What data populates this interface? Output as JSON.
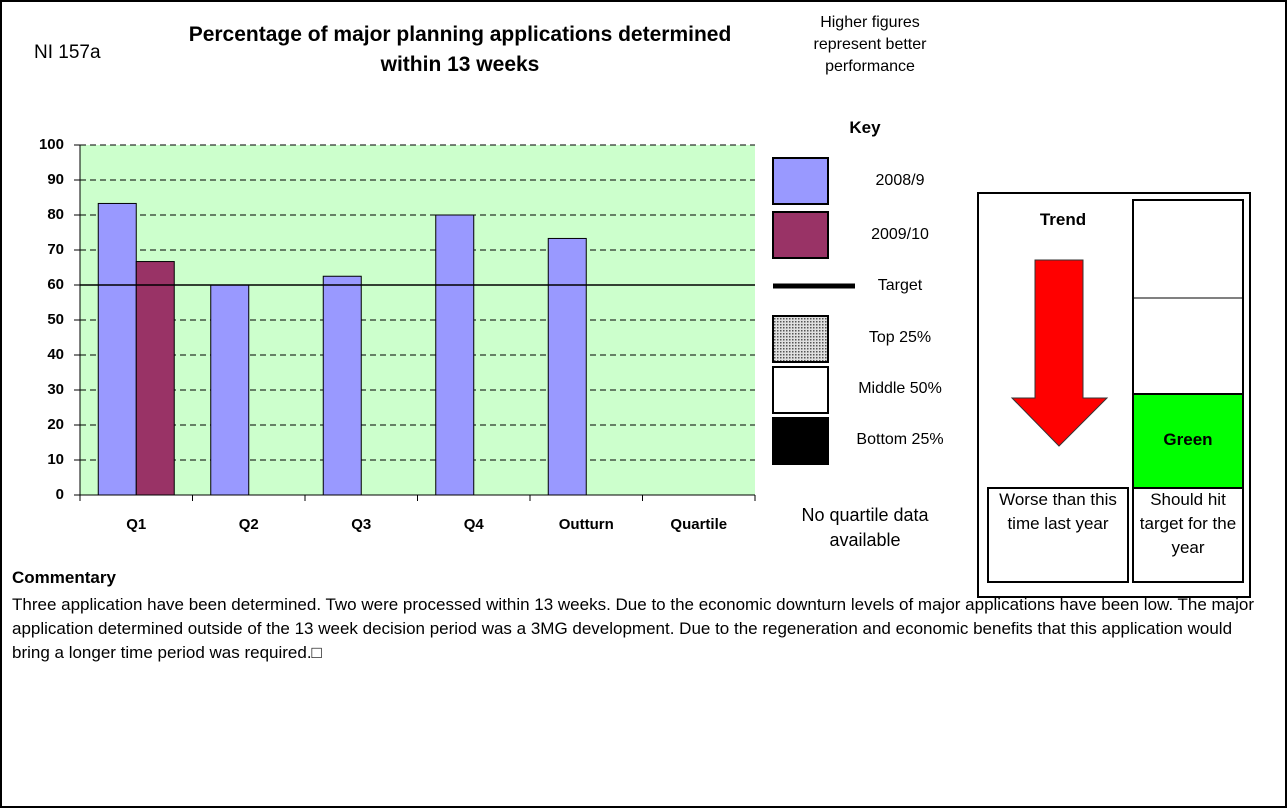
{
  "indicator": "NI 157a",
  "note": "Higher figures represent better performance",
  "key_title": "Key",
  "quartile_key": [
    "Top 25%",
    "Middle 50%",
    "Bottom 25%"
  ],
  "quartile_note": "No quartile data available",
  "trend": {
    "title": "Trend",
    "direction": "Worse than this time last year",
    "forecast": "Should hit target for the year",
    "status": "Green"
  },
  "commentary": {
    "title": "Commentary",
    "text": "Three application have been determined. Two were processed within 13 weeks. Due to the economic downturn levels of major applications have been low. The major application determined outside of the 13 week decision period was a 3MG development. Due to the regeneration and economic benefits that this application would bring a longer time period was required.□"
  },
  "chart_data": {
    "type": "bar",
    "title": "Percentage of major planning applications determined within 13 weeks",
    "categories": [
      "Q1",
      "Q2",
      "Q3",
      "Q4",
      "Outturn",
      "Quartile"
    ],
    "series": [
      {
        "name": "2008/9",
        "color": "#9999ff",
        "values": [
          83.3,
          60,
          62.5,
          80,
          73.3,
          null
        ]
      },
      {
        "name": "2009/10",
        "color": "#993366",
        "values": [
          66.7,
          null,
          null,
          null,
          null,
          null
        ]
      }
    ],
    "target": {
      "name": "Target",
      "value": 60,
      "color": "#000000"
    },
    "ylim": [
      0,
      100
    ],
    "yticks": [
      0,
      10,
      20,
      30,
      40,
      50,
      60,
      70,
      80,
      90,
      100
    ],
    "grid": true,
    "plot_background": "#ccffcc"
  }
}
